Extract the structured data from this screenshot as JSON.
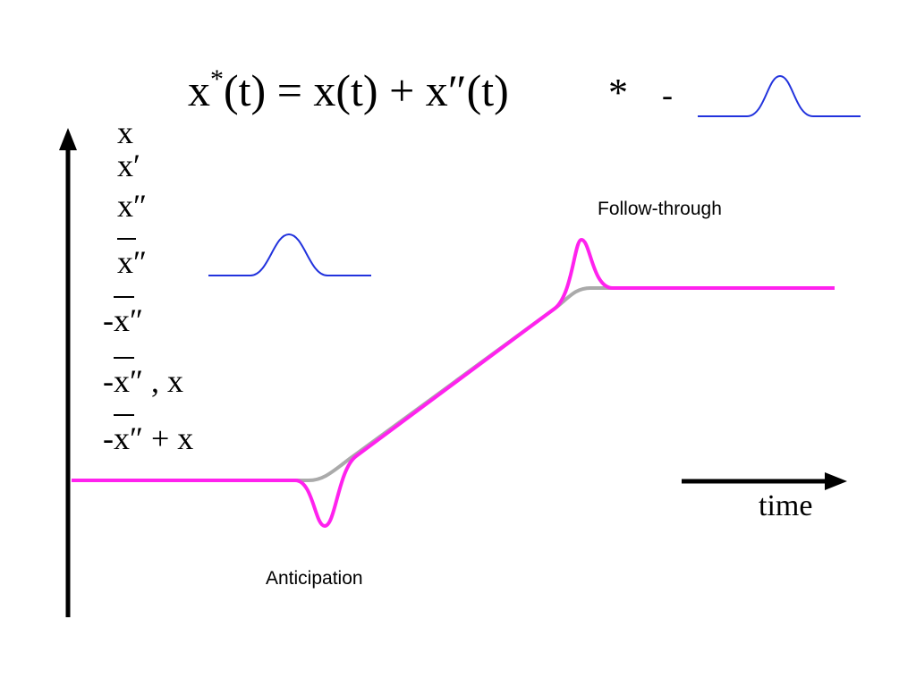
{
  "title": {
    "base": "x",
    "sup": "*",
    "rest": "(t) = x(t) + x″(t)",
    "op": "*",
    "minus": "-"
  },
  "labels": [
    [
      "x"
    ],
    [
      "x′"
    ],
    [
      "x″"
    ],
    [
      "x″"
    ],
    [
      "-",
      "x″"
    ],
    [
      "-",
      "x″",
      " , x"
    ],
    [
      "-",
      "x″",
      " + x"
    ]
  ],
  "annotations": {
    "follow_through": "Follow-through",
    "anticipation": "Anticipation",
    "time": "time"
  }
}
